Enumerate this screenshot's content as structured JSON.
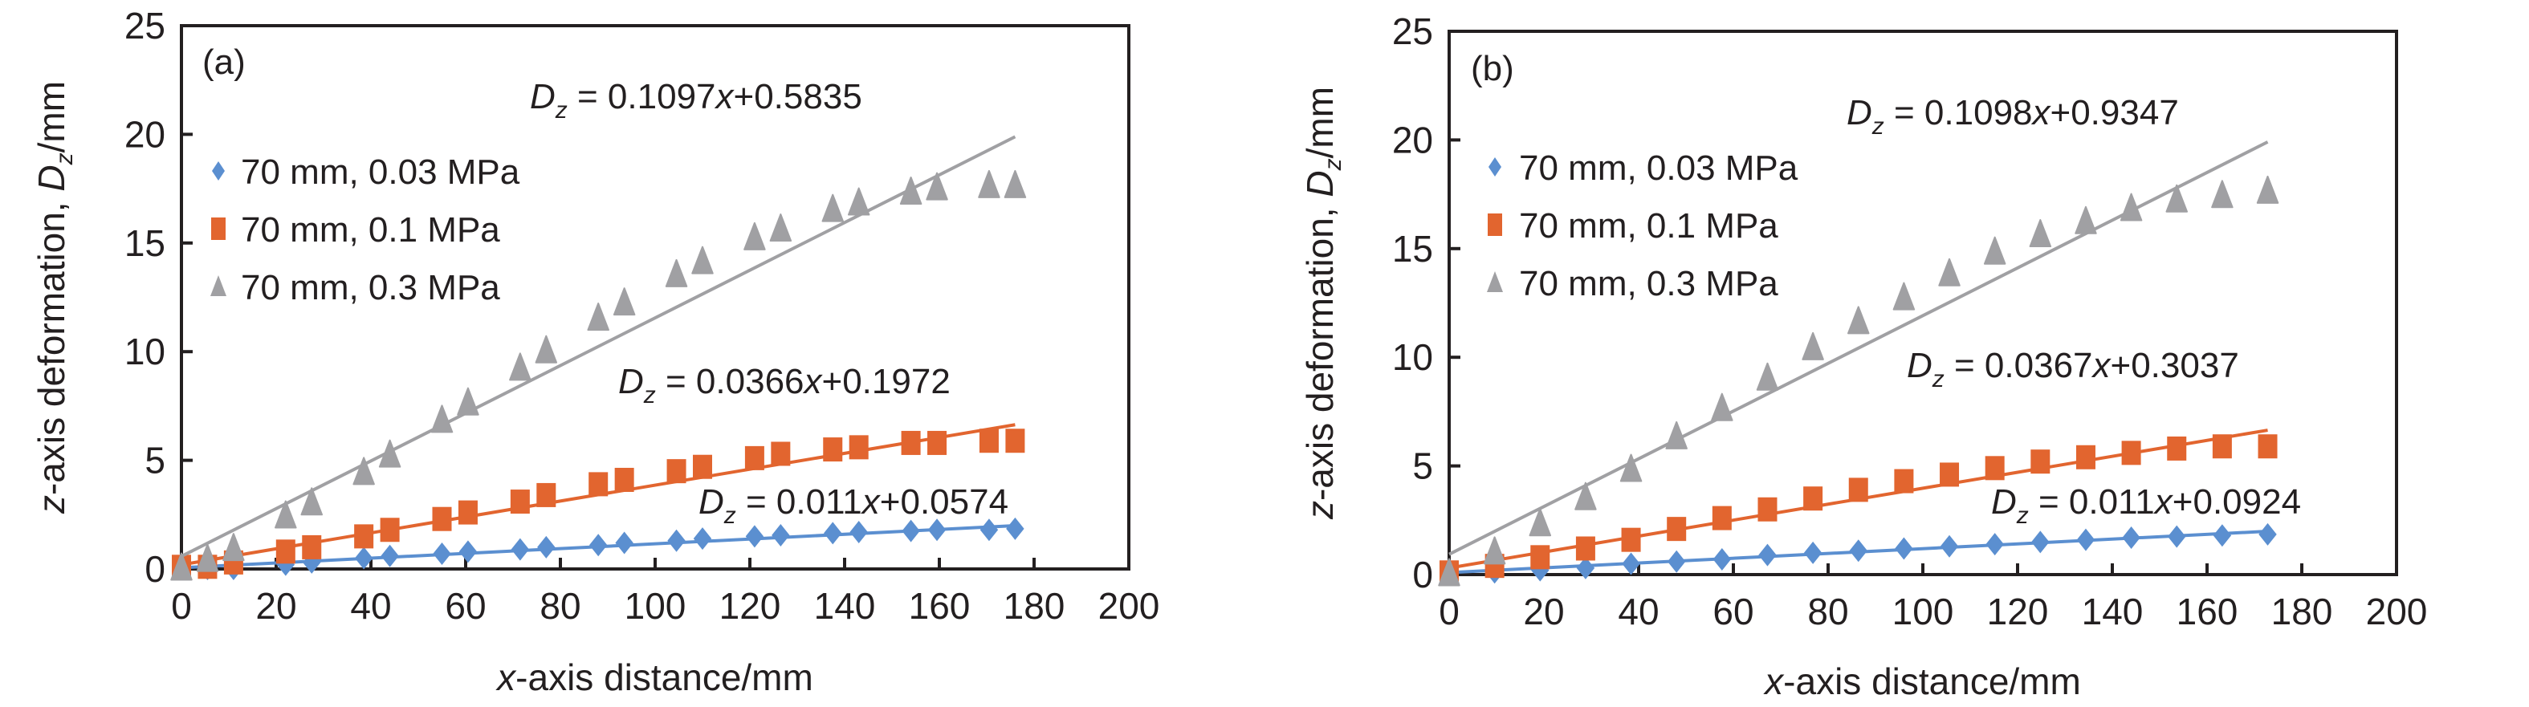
{
  "chart_data": [
    {
      "type": "scatter",
      "panel_label": "(a)",
      "xlabel": "x-axis distance/mm",
      "xlabel_italic_prefix": "x",
      "xlabel_rest": "-axis distance/mm",
      "ylabel": "z-axis deformation, Dz/mm",
      "ylabel_parts": {
        "z": "z",
        "mid": "-axis deformation, ",
        "D": "D",
        "sub": "z",
        "unit": "/mm"
      },
      "xlim": [
        0,
        200
      ],
      "ylim": [
        0,
        25
      ],
      "xticks": [
        0,
        20,
        40,
        60,
        80,
        100,
        120,
        140,
        160,
        180,
        200
      ],
      "yticks": [
        0,
        5,
        10,
        15,
        20,
        25
      ],
      "grid": false,
      "legend_position": "upper-left",
      "x": [
        0,
        5.5,
        11,
        22,
        27.5,
        38.5,
        44,
        55,
        60.5,
        71.5,
        77,
        88,
        93.5,
        104.5,
        110,
        121,
        126.5,
        137.5,
        143,
        154,
        159.5,
        170.5,
        176
      ],
      "series": [
        {
          "name": "70 mm, 0.03 MPa",
          "marker": "diamond",
          "color": "#5b8fd0",
          "values": [
            0,
            0,
            0,
            0.2,
            0.3,
            0.5,
            0.6,
            0.7,
            0.8,
            0.9,
            1.0,
            1.1,
            1.2,
            1.3,
            1.4,
            1.5,
            1.55,
            1.65,
            1.7,
            1.75,
            1.8,
            1.8,
            1.85
          ],
          "trend": {
            "slope": 0.011,
            "intercept": 0.0574,
            "label_D": "D",
            "label_sub": "z",
            "label_eq": " = 0.011",
            "label_x": "x",
            "label_rest": "+0.0574"
          }
        },
        {
          "name": "70 mm, 0.1 MPa",
          "marker": "square",
          "color": "#e2652f",
          "values": [
            0.1,
            0.1,
            0.3,
            0.8,
            1.0,
            1.5,
            1.8,
            2.3,
            2.6,
            3.1,
            3.4,
            3.9,
            4.1,
            4.5,
            4.7,
            5.1,
            5.3,
            5.5,
            5.6,
            5.8,
            5.8,
            5.9,
            5.9
          ],
          "trend": {
            "slope": 0.0366,
            "intercept": 0.1972,
            "label_D": "D",
            "label_sub": "z",
            "label_eq": " = 0.0366",
            "label_x": "x",
            "label_rest": "+0.1972"
          }
        },
        {
          "name": "70 mm, 0.3 MPa",
          "marker": "triangle",
          "color": "#a0a0a3",
          "values": [
            0,
            0.4,
            0.9,
            2.4,
            3.0,
            4.4,
            5.2,
            6.8,
            7.6,
            9.2,
            10.0,
            11.5,
            12.2,
            13.5,
            14.1,
            15.2,
            15.6,
            16.5,
            16.8,
            17.3,
            17.5,
            17.6,
            17.6
          ],
          "trend": {
            "slope": 0.1097,
            "intercept": 0.5835,
            "label_D": "D",
            "label_sub": "z",
            "label_eq": " = 0.1097",
            "label_x": "x",
            "label_rest": "+0.5835"
          }
        }
      ]
    },
    {
      "type": "scatter",
      "panel_label": "(b)",
      "xlabel": "x-axis distance/mm",
      "xlabel_italic_prefix": "x",
      "xlabel_rest": "-axis distance/mm",
      "ylabel": "z-axis deformation, Dz/mm",
      "ylabel_parts": {
        "z": "z",
        "mid": "-axis deformation, ",
        "D": "D",
        "sub": "z",
        "unit": "/mm"
      },
      "xlim": [
        0,
        200
      ],
      "ylim": [
        0,
        25
      ],
      "xticks": [
        0,
        20,
        40,
        60,
        80,
        100,
        120,
        140,
        160,
        180,
        200
      ],
      "yticks": [
        0,
        5,
        10,
        15,
        20,
        25
      ],
      "grid": false,
      "legend_position": "upper-left",
      "x": [
        0,
        9.6,
        19.2,
        28.8,
        38.4,
        48,
        57.6,
        67.2,
        76.8,
        86.4,
        96,
        105.6,
        115.2,
        124.8,
        134.4,
        144,
        153.6,
        163.2,
        172.8
      ],
      "series": [
        {
          "name": "70 mm, 0.03 MPa",
          "marker": "diamond",
          "color": "#5b8fd0",
          "values": [
            0,
            0.1,
            0.2,
            0.3,
            0.5,
            0.6,
            0.7,
            0.9,
            1.0,
            1.1,
            1.2,
            1.3,
            1.4,
            1.5,
            1.6,
            1.7,
            1.75,
            1.8,
            1.85
          ],
          "trend": {
            "slope": 0.011,
            "intercept": 0.0924,
            "label_D": "D",
            "label_sub": "z",
            "label_eq": " = 0.011",
            "label_x": "x",
            "label_rest": "+0.0924"
          }
        },
        {
          "name": "70 mm, 0.1 MPa",
          "marker": "square",
          "color": "#e2652f",
          "values": [
            0.1,
            0.4,
            0.8,
            1.2,
            1.6,
            2.1,
            2.6,
            3.0,
            3.5,
            3.9,
            4.3,
            4.6,
            4.9,
            5.2,
            5.4,
            5.6,
            5.8,
            5.9,
            5.9
          ],
          "trend": {
            "slope": 0.0367,
            "intercept": 0.3037,
            "label_D": "D",
            "label_sub": "z",
            "label_eq": " = 0.0367",
            "label_x": "x",
            "label_rest": "+0.3037"
          }
        },
        {
          "name": "70 mm, 0.3 MPa",
          "marker": "triangle",
          "color": "#a0a0a3",
          "values": [
            0,
            1.0,
            2.3,
            3.5,
            4.8,
            6.3,
            7.6,
            9.0,
            10.4,
            11.6,
            12.7,
            13.8,
            14.8,
            15.6,
            16.2,
            16.8,
            17.2,
            17.4,
            17.6
          ],
          "trend": {
            "slope": 0.1098,
            "intercept": 0.9347,
            "label_D": "D",
            "label_sub": "z",
            "label_eq": " = 0.1098",
            "label_x": "x",
            "label_rest": "+0.9347"
          }
        }
      ]
    }
  ]
}
